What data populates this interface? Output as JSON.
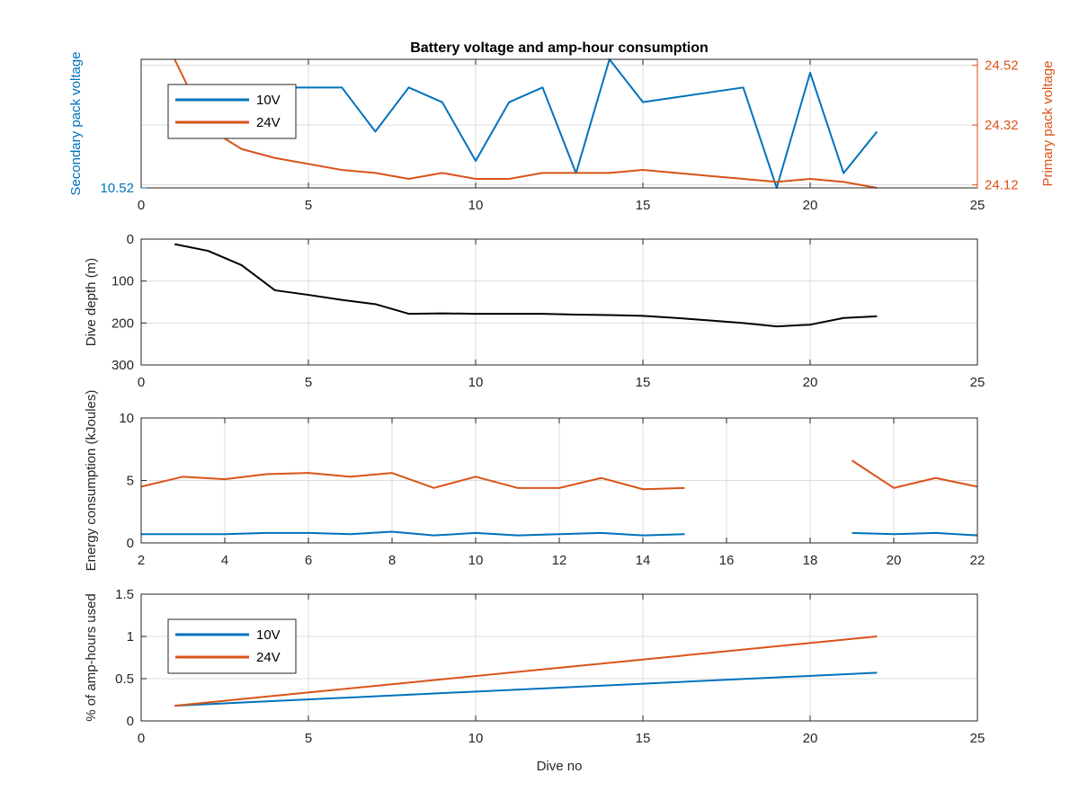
{
  "colors": {
    "blue": "#0072BD",
    "orange": "#D95319",
    "black": "#000000"
  },
  "chart_data": [
    {
      "type": "line",
      "title": "Battery voltage and amp-hour consumption",
      "xlabel": "",
      "ylabel_left": "Secondary pack voltage",
      "ylabel_right": "Primary pack voltage",
      "xlim": [
        0,
        25
      ],
      "xticks": [
        0,
        5,
        10,
        15,
        20,
        25
      ],
      "ylim_left": [
        10.52,
        10.625
      ],
      "yticks_left": [
        10.52
      ],
      "ylim_right": [
        24.11,
        24.54
      ],
      "yticks_right": [
        24.12,
        24.32,
        24.52
      ],
      "grid": true,
      "legend": {
        "position": "top-left",
        "entries": [
          "10V",
          "24V"
        ]
      },
      "series": [
        {
          "name": "10V",
          "axis": "left",
          "color": "#0072BD",
          "x": [
            4,
            5,
            6,
            7,
            8,
            9,
            10,
            11,
            12,
            13,
            14,
            15,
            18,
            19,
            20,
            21,
            22
          ],
          "y": [
            10.602,
            10.602,
            10.602,
            10.566,
            10.602,
            10.59,
            10.542,
            10.59,
            10.602,
            10.532,
            10.625,
            10.59,
            10.602,
            10.52,
            10.614,
            10.532,
            10.566
          ]
        },
        {
          "name": "24V",
          "axis": "right",
          "color": "#D95319",
          "x": [
            1,
            2,
            3,
            4,
            5,
            6,
            7,
            8,
            9,
            10,
            11,
            12,
            13,
            14,
            15,
            16,
            17,
            18,
            19,
            20,
            21,
            22
          ],
          "y": [
            24.54,
            24.31,
            24.24,
            24.21,
            24.19,
            24.17,
            24.16,
            24.14,
            24.16,
            24.14,
            24.14,
            24.16,
            24.16,
            24.16,
            24.17,
            24.16,
            24.15,
            24.14,
            24.13,
            24.14,
            24.13,
            24.11
          ]
        }
      ]
    },
    {
      "type": "line",
      "title": "",
      "xlabel": "",
      "ylabel": "Dive depth (m)",
      "xlim": [
        0,
        25
      ],
      "xticks": [
        0,
        5,
        10,
        15,
        20,
        25
      ],
      "ylim": [
        300,
        0
      ],
      "yticks": [
        0,
        100,
        200,
        300
      ],
      "y_reversed": true,
      "grid": true,
      "series": [
        {
          "color": "#000000",
          "x": [
            1,
            2,
            3,
            4,
            5,
            6,
            7,
            8,
            9,
            10,
            11,
            12,
            13,
            14,
            15,
            16,
            17,
            18,
            19,
            20,
            21,
            22
          ],
          "y": [
            12,
            28,
            62,
            122,
            133,
            145,
            155,
            178,
            177,
            178,
            178,
            178,
            180,
            181,
            183,
            188,
            194,
            200,
            208,
            204,
            188,
            184
          ]
        }
      ]
    },
    {
      "type": "line",
      "title": "",
      "xlabel": "",
      "ylabel": "Energy consumption (kJoules)",
      "xlim": [
        2,
        22
      ],
      "xticks": [
        2,
        4,
        6,
        8,
        10,
        12,
        14,
        16,
        18,
        20,
        22
      ],
      "ylim": [
        0,
        10
      ],
      "yticks": [
        0,
        5,
        10
      ],
      "grid": true,
      "series": [
        {
          "name": "24V",
          "color": "#D95319",
          "x": [
            2,
            3,
            4,
            5,
            6,
            7,
            8,
            9,
            10,
            11,
            12,
            13,
            14,
            15,
            null,
            19,
            20,
            21,
            22
          ],
          "y": [
            4.5,
            5.3,
            5.1,
            5.5,
            5.6,
            5.3,
            5.6,
            4.4,
            5.3,
            4.4,
            4.4,
            5.2,
            4.3,
            4.4,
            null,
            6.6,
            4.4,
            5.2,
            4.5
          ]
        },
        {
          "name": "10V",
          "color": "#0072BD",
          "x": [
            2,
            3,
            4,
            5,
            6,
            7,
            8,
            9,
            10,
            11,
            12,
            13,
            14,
            15,
            null,
            19,
            20,
            21,
            22
          ],
          "y": [
            0.7,
            0.7,
            0.7,
            0.8,
            0.8,
            0.7,
            0.9,
            0.6,
            0.8,
            0.6,
            0.7,
            0.8,
            0.6,
            0.7,
            null,
            0.8,
            0.7,
            0.8,
            0.6
          ]
        }
      ]
    },
    {
      "type": "line",
      "title": "",
      "xlabel": "Dive no",
      "ylabel": "% of amp-hours used",
      "xlim": [
        0,
        25
      ],
      "xticks": [
        0,
        5,
        10,
        15,
        20,
        25
      ],
      "ylim": [
        0,
        1.5
      ],
      "yticks": [
        0,
        0.5,
        1,
        1.5
      ],
      "grid": true,
      "legend": {
        "position": "top-left",
        "entries": [
          "10V",
          "24V"
        ]
      },
      "series": [
        {
          "name": "10V",
          "color": "#0072BD",
          "x": [
            1,
            22
          ],
          "y": [
            0.18,
            0.57
          ]
        },
        {
          "name": "24V",
          "color": "#D95319",
          "x": [
            1,
            22
          ],
          "y": [
            0.18,
            1.0
          ]
        }
      ]
    }
  ]
}
